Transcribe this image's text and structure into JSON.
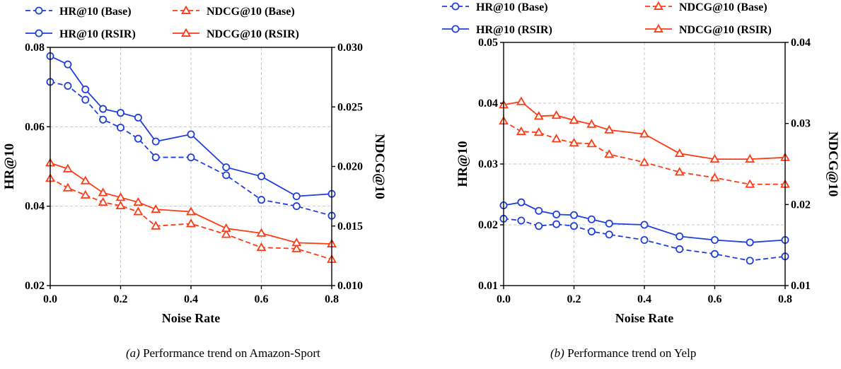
{
  "colors": {
    "base": "#1f3fdc",
    "rsir": "#ff3a14",
    "hr": "#1f3fdc",
    "ndcg": "#ff3a14",
    "grid": "#c8c8c8"
  },
  "chart_data": [
    {
      "type": "line",
      "caption_tag": "(a)",
      "caption_text": "Performance trend on Amazon-Sport",
      "xlabel": "Noise Rate",
      "ylabel": "HR@10",
      "y2label": "NDCG@10",
      "xlim": [
        0.0,
        0.8
      ],
      "ylim": [
        0.02,
        0.08
      ],
      "y2lim": [
        0.01,
        0.03
      ],
      "xticks": [
        "0.0",
        "0.2",
        "0.4",
        "0.6",
        "0.8"
      ],
      "yticks": [
        "0.02",
        "0.04",
        "0.06",
        "0.08"
      ],
      "y2ticks": [
        "0.010",
        "0.015",
        "0.020",
        "0.025",
        "0.030"
      ],
      "grid": true,
      "legend": [
        "HR@10 (Base)",
        "NDCG@10 (Base)",
        "HR@10 (RSIR)",
        "NDCG@10 (RSIR)"
      ],
      "x": [
        0.0,
        0.05,
        0.1,
        0.15,
        0.2,
        0.25,
        0.3,
        0.4,
        0.5,
        0.6,
        0.7,
        0.8
      ],
      "series": [
        {
          "name": "HR@10 (Base)",
          "axis": "left",
          "style": "dashed",
          "marker": "circle",
          "values": [
            0.0713,
            0.0703,
            0.0668,
            0.0618,
            0.0598,
            0.057,
            0.0523,
            0.0523,
            0.0478,
            0.0416,
            0.04,
            0.0376
          ]
        },
        {
          "name": "NDCG@10 (Base)",
          "axis": "right",
          "style": "dashed",
          "marker": "triangle",
          "values": [
            0.019,
            0.0182,
            0.0176,
            0.017,
            0.0167,
            0.0162,
            0.015,
            0.0152,
            0.0143,
            0.0132,
            0.0131,
            0.0122
          ]
        },
        {
          "name": "HR@10 (RSIR)",
          "axis": "left",
          "style": "solid",
          "marker": "circle",
          "values": [
            0.0778,
            0.0757,
            0.0694,
            0.0645,
            0.0635,
            0.0623,
            0.0563,
            0.0581,
            0.0498,
            0.0475,
            0.0425,
            0.0431
          ]
        },
        {
          "name": "NDCG@10 (RSIR)",
          "axis": "right",
          "style": "solid",
          "marker": "triangle",
          "values": [
            0.0203,
            0.0198,
            0.0188,
            0.0178,
            0.0174,
            0.017,
            0.0164,
            0.0162,
            0.0148,
            0.0144,
            0.0136,
            0.0135
          ]
        }
      ]
    },
    {
      "type": "line",
      "caption_tag": "(b)",
      "caption_text": "Performance trend on Yelp",
      "xlabel": "Noise Rate",
      "ylabel": "HR@10",
      "y2label": "NDCG@10",
      "xlim": [
        0.0,
        0.8
      ],
      "ylim": [
        0.01,
        0.05
      ],
      "y2lim": [
        0.01,
        0.04
      ],
      "xticks": [
        "0.0",
        "0.2",
        "0.4",
        "0.6",
        "0.8"
      ],
      "yticks": [
        "0.01",
        "0.02",
        "0.03",
        "0.04",
        "0.05"
      ],
      "y2ticks": [
        "0.01",
        "0.02",
        "0.03",
        "0.04"
      ],
      "grid": true,
      "legend": [
        "HR@10 (Base)",
        "NDCG@10 (Base)",
        "HR@10 (RSIR)",
        "NDCG@10 (RSIR)"
      ],
      "x": [
        0.0,
        0.05,
        0.1,
        0.15,
        0.2,
        0.25,
        0.3,
        0.4,
        0.5,
        0.6,
        0.7,
        0.8
      ],
      "series": [
        {
          "name": "HR@10 (Base)",
          "axis": "left",
          "style": "dashed",
          "marker": "circle",
          "values": [
            0.021,
            0.0207,
            0.0198,
            0.0201,
            0.0198,
            0.0189,
            0.0184,
            0.0175,
            0.016,
            0.0152,
            0.0141,
            0.0148
          ]
        },
        {
          "name": "NDCG@10 (Base)",
          "axis": "right",
          "style": "dashed",
          "marker": "triangle",
          "values": [
            0.0303,
            0.029,
            0.0289,
            0.0281,
            0.0276,
            0.0275,
            0.0262,
            0.0252,
            0.024,
            0.0233,
            0.0225,
            0.0225
          ]
        },
        {
          "name": "HR@10 (RSIR)",
          "axis": "left",
          "style": "solid",
          "marker": "circle",
          "values": [
            0.0232,
            0.0237,
            0.0223,
            0.0217,
            0.0216,
            0.0209,
            0.0202,
            0.02,
            0.0181,
            0.0175,
            0.0171,
            0.0175
          ]
        },
        {
          "name": "NDCG@10 (RSIR)",
          "axis": "right",
          "style": "solid",
          "marker": "triangle",
          "values": [
            0.0323,
            0.0327,
            0.0309,
            0.031,
            0.0304,
            0.0299,
            0.0292,
            0.0287,
            0.0263,
            0.0256,
            0.0256,
            0.0258
          ]
        }
      ]
    }
  ]
}
